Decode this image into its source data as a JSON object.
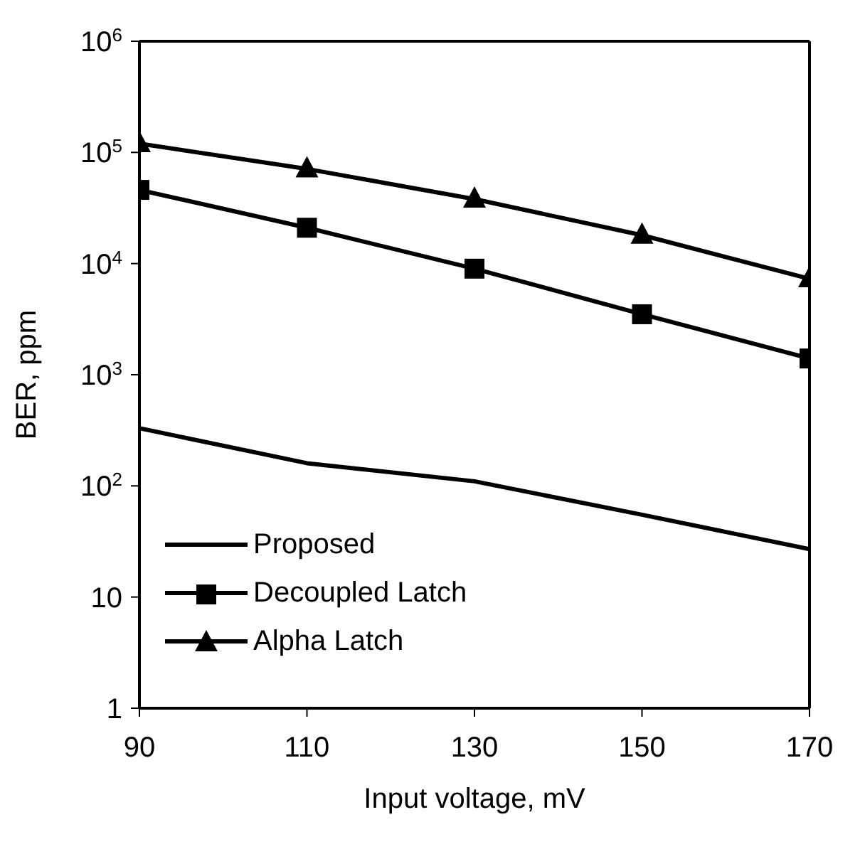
{
  "chart_data": {
    "type": "line",
    "xlabel": "Input voltage, mV",
    "ylabel": "BER, ppm",
    "x": [
      90,
      110,
      130,
      150,
      170
    ],
    "series": [
      {
        "name": "Proposed",
        "color": "#000000",
        "marker": "none",
        "values": [
          330,
          160,
          110,
          55,
          27
        ]
      },
      {
        "name": "Decoupled Latch",
        "color": "#000000",
        "marker": "square",
        "values": [
          46000,
          21000,
          9000,
          3500,
          1400
        ]
      },
      {
        "name": "Alpha Latch",
        "color": "#000000",
        "marker": "triangle",
        "values": [
          120000,
          71000,
          38000,
          18000,
          7300
        ]
      }
    ],
    "xlim": [
      90,
      170
    ],
    "xticks": [
      90,
      110,
      130,
      150,
      170
    ],
    "ylim": [
      1,
      1000000
    ],
    "yticks": [
      1,
      10,
      {
        "value": 100,
        "label": "10$^{2}$"
      },
      {
        "value": 1000,
        "label": "10$^{3}$"
      },
      {
        "value": 10000,
        "label": "10$^{4}$"
      },
      {
        "value": 100000,
        "label": "10$^{5}$"
      },
      {
        "value": 1000000,
        "label": "10$^{6}$"
      }
    ],
    "log": "y",
    "grid": false,
    "legend": "bottom left",
    "line_style": "solid"
  }
}
